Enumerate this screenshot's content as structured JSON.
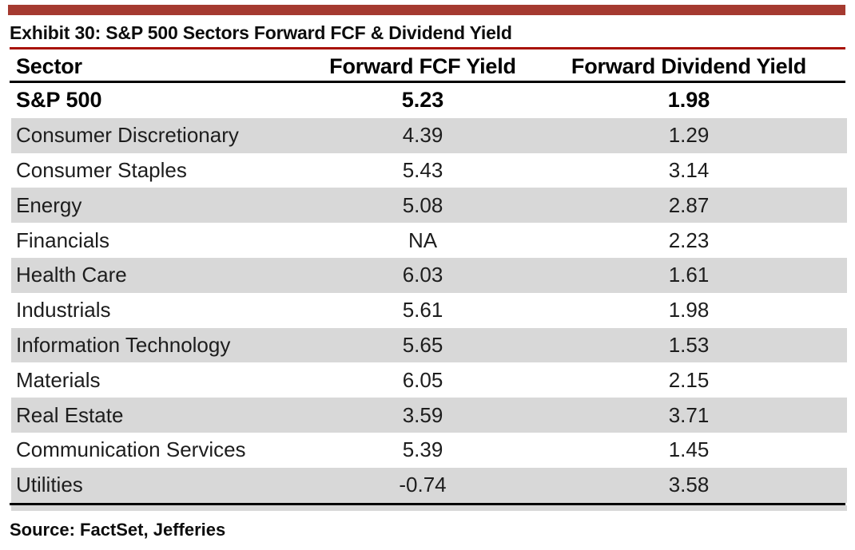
{
  "exhibit": {
    "title": "Exhibit 30: S&P 500 Sectors Forward FCF & Dividend Yield",
    "source": "Source: FactSet, Jefferies"
  },
  "table": {
    "columns": [
      "Sector",
      "Forward FCF Yield",
      "Forward Dividend Yield"
    ],
    "summary_row": {
      "sector": "S&P 500",
      "fcf": "5.23",
      "div": "1.98"
    },
    "rows": [
      {
        "sector": "Consumer Discretionary",
        "fcf": "4.39",
        "div": "1.29"
      },
      {
        "sector": "Consumer Staples",
        "fcf": "5.43",
        "div": "3.14"
      },
      {
        "sector": "Energy",
        "fcf": "5.08",
        "div": "2.87"
      },
      {
        "sector": "Financials",
        "fcf": "NA",
        "div": "2.23"
      },
      {
        "sector": "Health Care",
        "fcf": "6.03",
        "div": "1.61"
      },
      {
        "sector": "Industrials",
        "fcf": "5.61",
        "div": "1.98"
      },
      {
        "sector": "Information Technology",
        "fcf": "5.65",
        "div": "1.53"
      },
      {
        "sector": "Materials",
        "fcf": "6.05",
        "div": "2.15"
      },
      {
        "sector": "Real Estate",
        "fcf": "3.59",
        "div": "3.71"
      },
      {
        "sector": "Communication Services",
        "fcf": "5.39",
        "div": "1.45"
      },
      {
        "sector": "Utilities",
        "fcf": "-0.74",
        "div": "3.58"
      }
    ]
  },
  "colors": {
    "accent_bar": "#A53A30",
    "title_rule": "#A81205",
    "row_stripe": "#D8D8D8",
    "table_rule": "#000000"
  },
  "chart_data": {
    "type": "table",
    "title": "Exhibit 30: S&P 500 Sectors Forward FCF & Dividend Yield",
    "columns": [
      "Sector",
      "Forward FCF Yield",
      "Forward Dividend Yield"
    ],
    "rows": [
      [
        "S&P 500",
        5.23,
        1.98
      ],
      [
        "Consumer Discretionary",
        4.39,
        1.29
      ],
      [
        "Consumer Staples",
        5.43,
        3.14
      ],
      [
        "Energy",
        5.08,
        2.87
      ],
      [
        "Financials",
        "NA",
        2.23
      ],
      [
        "Health Care",
        6.03,
        1.61
      ],
      [
        "Industrials",
        5.61,
        1.98
      ],
      [
        "Information Technology",
        5.65,
        1.53
      ],
      [
        "Materials",
        6.05,
        2.15
      ],
      [
        "Real Estate",
        3.59,
        3.71
      ],
      [
        "Communication Services",
        5.39,
        1.45
      ],
      [
        "Utilities",
        -0.74,
        3.58
      ]
    ],
    "source": "Source: FactSet, Jefferies"
  }
}
